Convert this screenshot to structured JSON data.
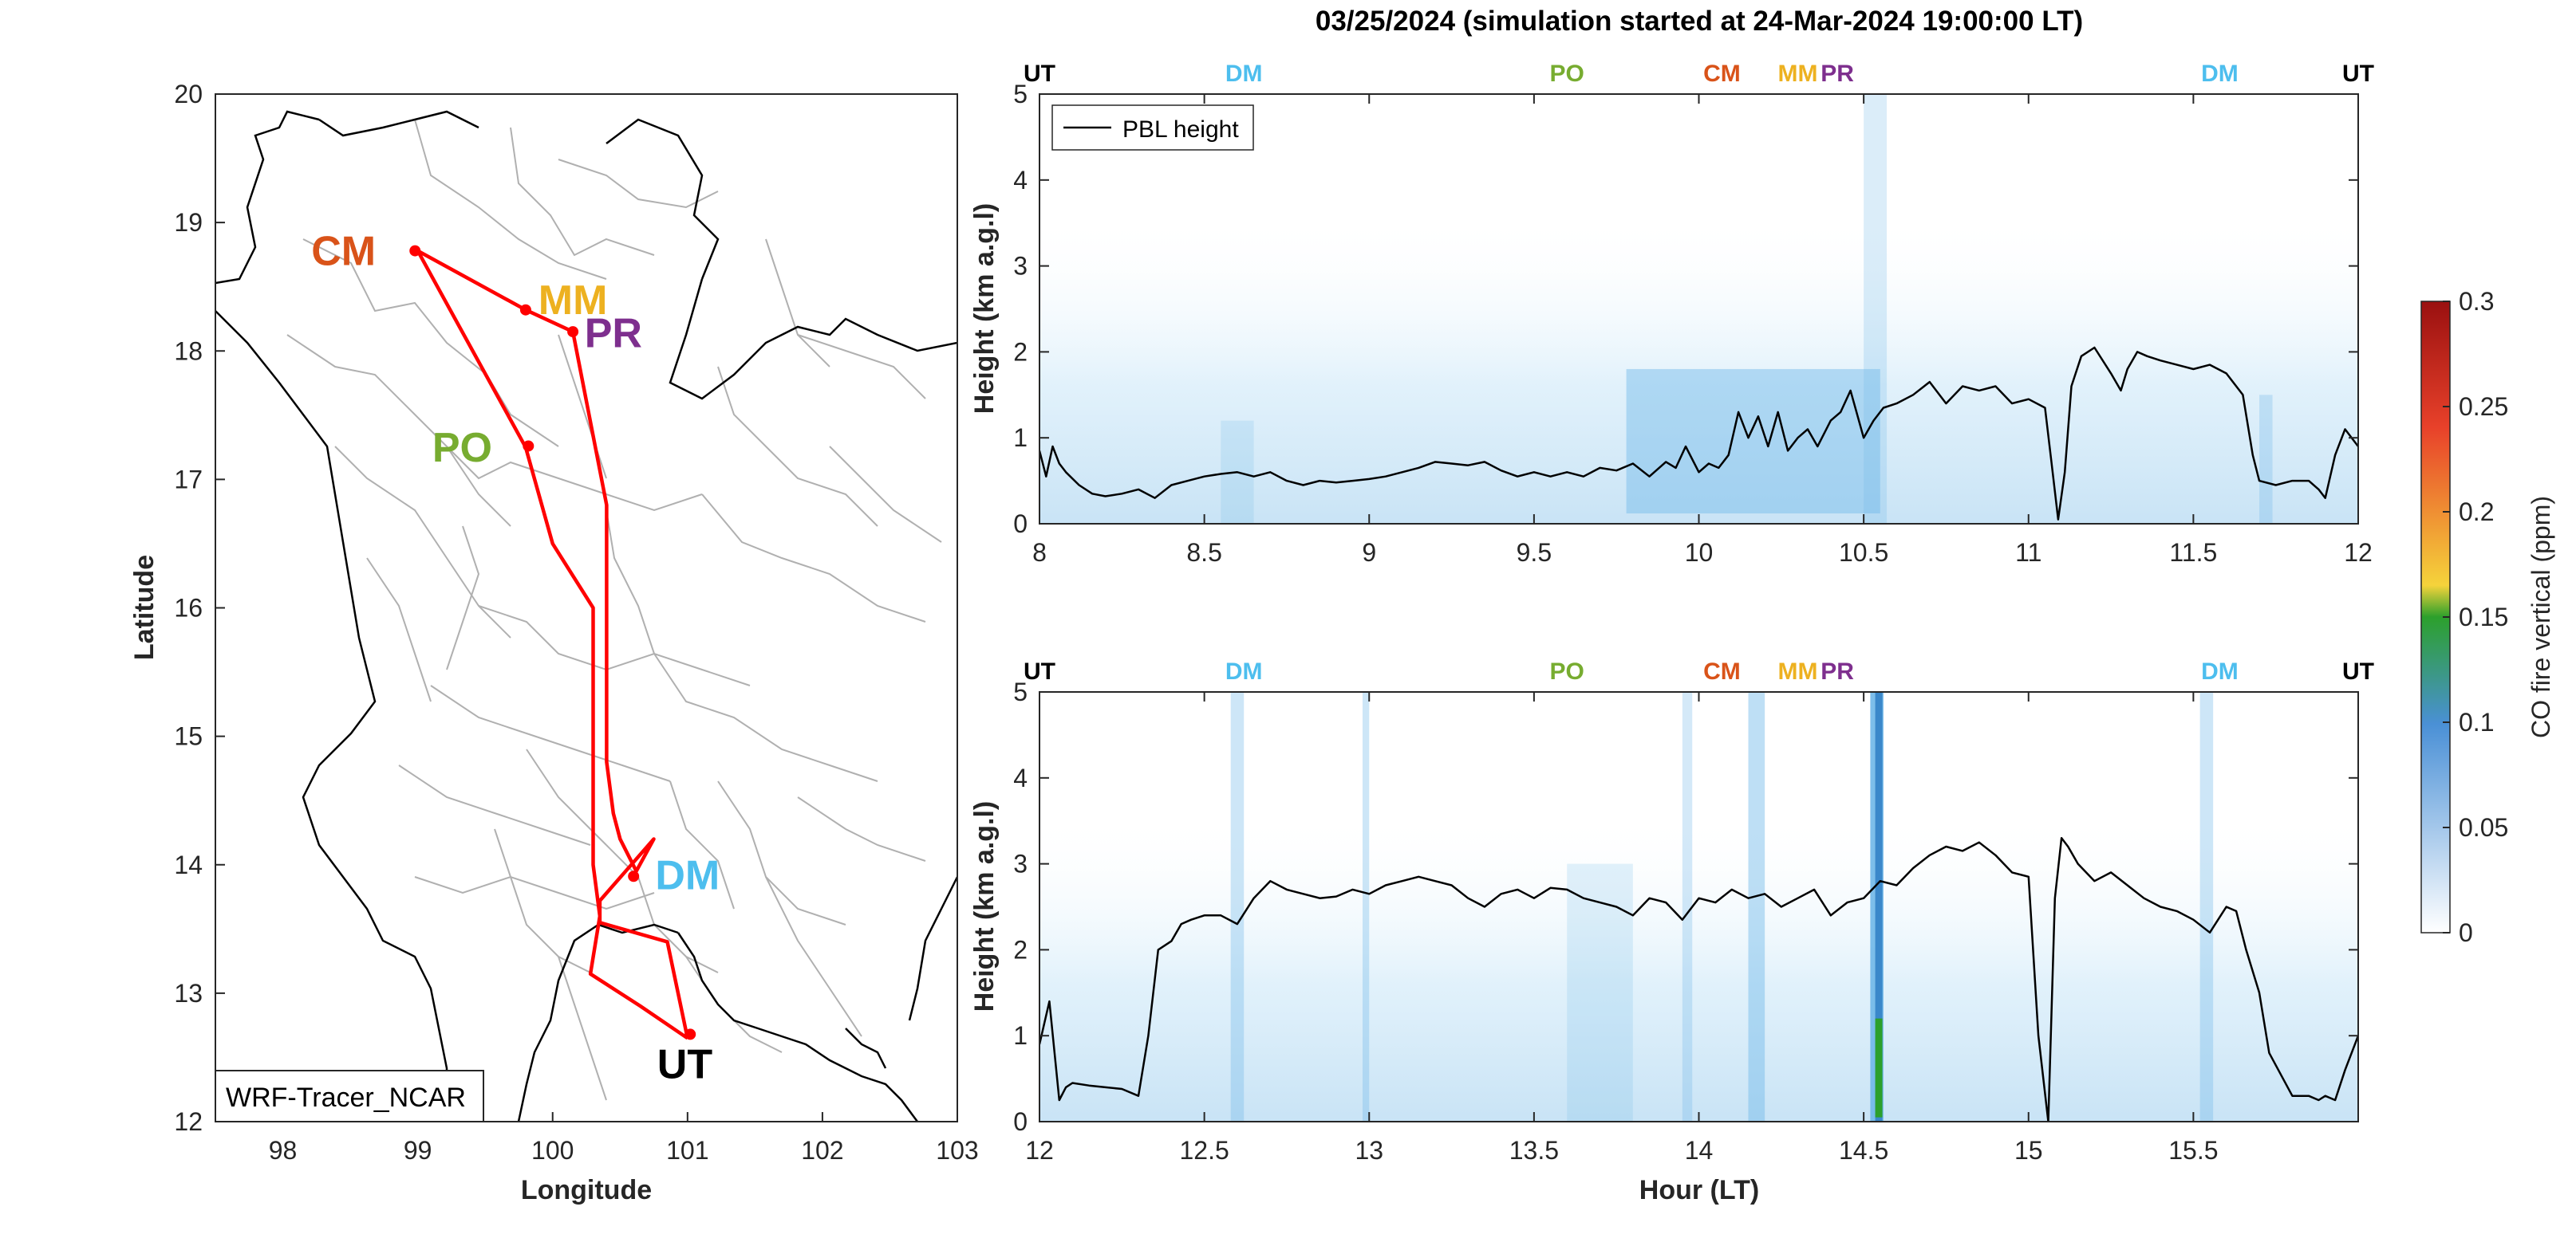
{
  "title": "03/25/2024 (simulation started at 24-Mar-2024 19:00:00 LT)",
  "colors": {
    "CM": "#d95319",
    "MM": "#edb120",
    "PR": "#7e2f8e",
    "PO": "#77ac30",
    "DM": "#4dbeee",
    "UT": "#000000",
    "route": "#ff0000",
    "pbl": "#000000",
    "border": "#b0b0b0",
    "coast": "#000000"
  },
  "colormap": [
    "#ffffff",
    "#4a90d6",
    "#2ca02c",
    "#f5d33b",
    "#e8412a",
    "#9a1010"
  ],
  "chart_data": [
    {
      "type": "line",
      "subtype": "map",
      "xlabel": "Longitude",
      "ylabel": "Latitude",
      "xlim": [
        97.5,
        103
      ],
      "ylim": [
        12,
        20
      ],
      "xticks": [
        98,
        99,
        100,
        101,
        102,
        103
      ],
      "yticks": [
        12,
        13,
        14,
        15,
        16,
        17,
        18,
        19,
        20
      ],
      "legend": "WRF-Tracer_NCAR",
      "route": {
        "lon": [
          101.0,
          100.65,
          100.28,
          100.35,
          100.3,
          100.3,
          100.0,
          99.8,
          99.0,
          99.8,
          100.15,
          100.4,
          100.4,
          100.4,
          100.45,
          100.5,
          100.62,
          100.75,
          100.55,
          100.35,
          100.35,
          100.85,
          101.0
        ],
        "lat": [
          12.65,
          12.9,
          13.15,
          13.6,
          14.0,
          16.0,
          16.5,
          17.25,
          18.78,
          18.32,
          18.15,
          16.8,
          16.0,
          14.8,
          14.4,
          14.2,
          13.95,
          14.2,
          13.96,
          13.72,
          13.55,
          13.4,
          12.65
        ]
      },
      "sites": [
        {
          "name": "CM",
          "lon": 98.98,
          "lat": 18.78,
          "label_lon": 98.45,
          "label_lat": 18.78
        },
        {
          "name": "MM",
          "lon": 99.8,
          "lat": 18.32,
          "label_lon": 100.15,
          "label_lat": 18.4
        },
        {
          "name": "PR",
          "lon": 100.15,
          "lat": 18.15,
          "label_lon": 100.45,
          "label_lat": 18.14
        },
        {
          "name": "PO",
          "lon": 99.82,
          "lat": 17.26,
          "label_lon": 99.33,
          "label_lat": 17.25
        },
        {
          "name": "DM",
          "lon": 100.6,
          "lat": 13.91,
          "label_lon": 101.0,
          "label_lat": 13.92
        },
        {
          "name": "UT",
          "lon": 101.02,
          "lat": 12.68,
          "label_lon": 100.98,
          "label_lat": 12.45
        }
      ]
    },
    {
      "type": "heatmap",
      "ylabel": "Height (km a.g.l)",
      "xlim": [
        8,
        12
      ],
      "ylim": [
        0,
        5
      ],
      "xticks": [
        8,
        8.5,
        9,
        9.5,
        10,
        10.5,
        11,
        11.5,
        12
      ],
      "yticks": [
        0,
        1,
        2,
        3,
        4,
        5
      ],
      "colorbar": {
        "label": "CO fire vertical (ppm)",
        "range": [
          0,
          0.3
        ],
        "ticks": [
          0,
          0.05,
          0.1,
          0.15,
          0.2,
          0.25,
          0.3
        ]
      },
      "legend": "PBL height",
      "site_markers": [
        {
          "name": "UT",
          "x": 8.0
        },
        {
          "name": "DM",
          "x": 8.62
        },
        {
          "name": "PO",
          "x": 9.6
        },
        {
          "name": "CM",
          "x": 10.07
        },
        {
          "name": "MM",
          "x": 10.3
        },
        {
          "name": "PR",
          "x": 10.42
        },
        {
          "name": "DM",
          "x": 11.58
        },
        {
          "name": "UT",
          "x": 12.0
        }
      ],
      "series": [
        {
          "name": "PBL height",
          "x": [
            8.0,
            8.02,
            8.04,
            8.06,
            8.08,
            8.12,
            8.16,
            8.2,
            8.25,
            8.3,
            8.35,
            8.4,
            8.45,
            8.5,
            8.55,
            8.6,
            8.65,
            8.7,
            8.75,
            8.8,
            8.85,
            8.9,
            8.95,
            9.0,
            9.05,
            9.1,
            9.15,
            9.2,
            9.25,
            9.3,
            9.35,
            9.4,
            9.45,
            9.5,
            9.55,
            9.6,
            9.65,
            9.7,
            9.75,
            9.8,
            9.85,
            9.9,
            9.93,
            9.96,
            10.0,
            10.03,
            10.06,
            10.09,
            10.12,
            10.15,
            10.18,
            10.21,
            10.24,
            10.27,
            10.3,
            10.33,
            10.36,
            10.4,
            10.43,
            10.46,
            10.5,
            10.53,
            10.56,
            10.6,
            10.65,
            10.7,
            10.75,
            10.8,
            10.85,
            10.9,
            10.95,
            11.0,
            11.05,
            11.07,
            11.09,
            11.11,
            11.13,
            11.16,
            11.2,
            11.25,
            11.28,
            11.3,
            11.33,
            11.36,
            11.4,
            11.45,
            11.5,
            11.55,
            11.6,
            11.65,
            11.68,
            11.7,
            11.75,
            11.8,
            11.85,
            11.88,
            11.9,
            11.93,
            11.96,
            12.0
          ],
          "values": [
            0.85,
            0.55,
            0.9,
            0.7,
            0.6,
            0.45,
            0.35,
            0.32,
            0.35,
            0.4,
            0.3,
            0.45,
            0.5,
            0.55,
            0.58,
            0.6,
            0.55,
            0.6,
            0.5,
            0.45,
            0.5,
            0.48,
            0.5,
            0.52,
            0.55,
            0.6,
            0.65,
            0.72,
            0.7,
            0.68,
            0.72,
            0.62,
            0.55,
            0.6,
            0.55,
            0.6,
            0.55,
            0.65,
            0.62,
            0.7,
            0.55,
            0.72,
            0.65,
            0.9,
            0.6,
            0.7,
            0.65,
            0.8,
            1.3,
            1.0,
            1.25,
            0.9,
            1.3,
            0.85,
            1.0,
            1.1,
            0.9,
            1.2,
            1.3,
            1.55,
            1.0,
            1.2,
            1.35,
            1.4,
            1.5,
            1.65,
            1.4,
            1.6,
            1.55,
            1.6,
            1.4,
            1.45,
            1.35,
            0.7,
            0.05,
            0.6,
            1.6,
            1.95,
            2.05,
            1.75,
            1.55,
            1.8,
            2.0,
            1.95,
            1.9,
            1.85,
            1.8,
            1.85,
            1.75,
            1.5,
            0.8,
            0.5,
            0.45,
            0.5,
            0.5,
            0.4,
            0.3,
            0.8,
            1.1,
            0.9
          ]
        }
      ]
    },
    {
      "type": "heatmap",
      "xlabel": "Hour (LT)",
      "ylabel": "Height (km a.g.l)",
      "xlim": [
        12,
        16
      ],
      "ylim": [
        0,
        5
      ],
      "xticks": [
        12,
        12.5,
        13,
        13.5,
        14,
        14.5,
        15,
        15.5
      ],
      "yticks": [
        0,
        1,
        2,
        3,
        4,
        5
      ],
      "site_markers": [
        {
          "name": "UT",
          "x": 12.0
        },
        {
          "name": "DM",
          "x": 12.62
        },
        {
          "name": "PO",
          "x": 13.6
        },
        {
          "name": "CM",
          "x": 14.07
        },
        {
          "name": "MM",
          "x": 14.3
        },
        {
          "name": "PR",
          "x": 14.42
        },
        {
          "name": "DM",
          "x": 15.58
        },
        {
          "name": "UT",
          "x": 16.0
        }
      ],
      "series": [
        {
          "name": "PBL height",
          "x": [
            12.0,
            12.03,
            12.06,
            12.08,
            12.1,
            12.15,
            12.2,
            12.25,
            12.3,
            12.33,
            12.36,
            12.4,
            12.43,
            12.46,
            12.5,
            12.55,
            12.6,
            12.65,
            12.7,
            12.75,
            12.8,
            12.85,
            12.9,
            12.95,
            13.0,
            13.05,
            13.1,
            13.15,
            13.2,
            13.25,
            13.3,
            13.35,
            13.4,
            13.45,
            13.5,
            13.55,
            13.6,
            13.65,
            13.7,
            13.75,
            13.8,
            13.85,
            13.9,
            13.95,
            14.0,
            14.05,
            14.1,
            14.15,
            14.2,
            14.25,
            14.3,
            14.35,
            14.4,
            14.45,
            14.5,
            14.55,
            14.6,
            14.65,
            14.7,
            14.75,
            14.8,
            14.85,
            14.9,
            14.95,
            15.0,
            15.03,
            15.06,
            15.08,
            15.1,
            15.12,
            15.15,
            15.2,
            15.25,
            15.3,
            15.35,
            15.4,
            15.45,
            15.5,
            15.55,
            15.6,
            15.63,
            15.66,
            15.7,
            15.73,
            15.8,
            15.85,
            15.88,
            15.9,
            15.93,
            15.96,
            16.0
          ],
          "values": [
            0.9,
            1.4,
            0.25,
            0.4,
            0.45,
            0.42,
            0.4,
            0.38,
            0.3,
            1.0,
            2.0,
            2.1,
            2.3,
            2.35,
            2.4,
            2.4,
            2.3,
            2.6,
            2.8,
            2.7,
            2.65,
            2.6,
            2.62,
            2.7,
            2.65,
            2.75,
            2.8,
            2.85,
            2.8,
            2.75,
            2.6,
            2.5,
            2.65,
            2.7,
            2.6,
            2.72,
            2.7,
            2.6,
            2.55,
            2.5,
            2.4,
            2.6,
            2.55,
            2.35,
            2.6,
            2.55,
            2.7,
            2.6,
            2.65,
            2.5,
            2.6,
            2.7,
            2.4,
            2.55,
            2.6,
            2.8,
            2.75,
            2.95,
            3.1,
            3.2,
            3.15,
            3.25,
            3.1,
            2.9,
            2.85,
            1.0,
            0.0,
            2.6,
            3.3,
            3.2,
            3.0,
            2.8,
            2.9,
            2.75,
            2.6,
            2.5,
            2.45,
            2.35,
            2.2,
            2.5,
            2.45,
            2.0,
            1.5,
            0.8,
            0.3,
            0.3,
            0.25,
            0.3,
            0.25,
            0.6,
            1.0
          ]
        }
      ]
    }
  ]
}
